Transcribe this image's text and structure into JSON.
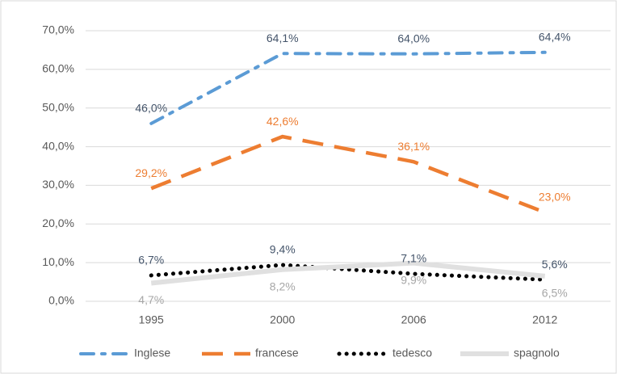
{
  "chart_data": {
    "type": "line",
    "categories": [
      "1995",
      "2000",
      "2006",
      "2012"
    ],
    "series": [
      {
        "name": "Inglese",
        "color": "#5b9bd5",
        "line_style": "dash-dot",
        "label_color": "#44546a",
        "values": [
          46.0,
          64.1,
          64.0,
          64.4
        ],
        "value_labels": [
          "46,0%",
          "64,1%",
          "64,0%",
          "64,4%"
        ]
      },
      {
        "name": "francese",
        "color": "#ed7d31",
        "line_style": "dash",
        "label_color": "#ed7d31",
        "values": [
          29.2,
          42.6,
          36.1,
          23.0
        ],
        "value_labels": [
          "29,2%",
          "42,6%",
          "36,1%",
          "23,0%"
        ]
      },
      {
        "name": "tedesco",
        "color": "#000000",
        "line_style": "dot",
        "label_color": "#44546a",
        "values": [
          6.7,
          9.4,
          7.1,
          5.6
        ],
        "value_labels": [
          "6,7%",
          "9,4%",
          "7,1%",
          "5,6%"
        ]
      },
      {
        "name": "spagnolo",
        "color": "#e0e0e0",
        "line_style": "solid",
        "label_color": "#a6a6a6",
        "values": [
          4.7,
          8.2,
          9.9,
          6.5
        ],
        "value_labels": [
          "4,7%",
          "8,2%",
          "9,9%",
          "6,5%"
        ]
      }
    ],
    "ylim": [
      0,
      70
    ],
    "yticks": [
      {
        "value": 0,
        "label": "0,0%"
      },
      {
        "value": 10,
        "label": "10,0%"
      },
      {
        "value": 20,
        "label": "20,0%"
      },
      {
        "value": 30,
        "label": "30,0%"
      },
      {
        "value": 40,
        "label": "40,0%"
      },
      {
        "value": 50,
        "label": "50,0%"
      },
      {
        "value": 60,
        "label": "60,0%"
      },
      {
        "value": 70,
        "label": "70,0%"
      }
    ],
    "grid": true,
    "legend": "bottom"
  }
}
